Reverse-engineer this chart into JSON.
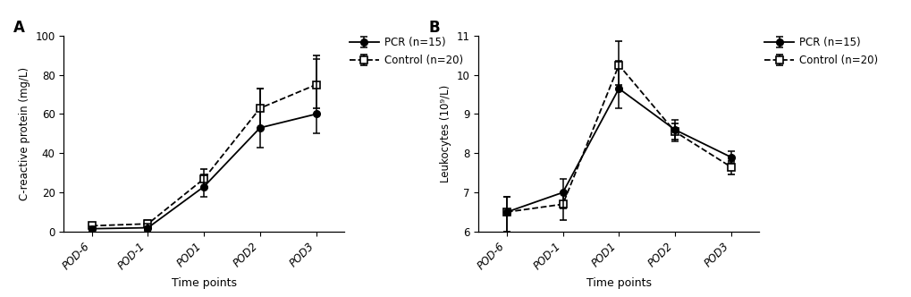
{
  "x_labels": [
    "POD-6",
    "POD-1",
    "POD1",
    "POD2",
    "POD3"
  ],
  "panel_A": {
    "title": "A",
    "ylabel": "C-reactive protein (mg/L)",
    "xlabel": "Time points",
    "ylim": [
      0,
      100
    ],
    "yticks": [
      0,
      20,
      40,
      60,
      80,
      100
    ],
    "pcr": {
      "y": [
        1.5,
        2.0,
        23.0,
        53.0,
        60.0
      ],
      "yerr_low": [
        1.0,
        1.5,
        5.0,
        10.0,
        10.0
      ],
      "yerr_high": [
        1.0,
        2.0,
        6.0,
        20.0,
        28.0
      ],
      "label": "PCR (n=15)",
      "marker": "o",
      "linestyle": "-",
      "color": "#000000"
    },
    "control": {
      "y": [
        3.0,
        4.0,
        27.0,
        63.0,
        75.0
      ],
      "yerr_low": [
        2.0,
        3.0,
        5.0,
        10.0,
        12.0
      ],
      "yerr_high": [
        1.0,
        2.0,
        5.0,
        10.0,
        15.0
      ],
      "label": "Control (n=20)",
      "marker": "s",
      "linestyle": "--",
      "color": "#000000"
    }
  },
  "panel_B": {
    "title": "B",
    "ylabel": "Leukocytes (10⁹/L)",
    "xlabel": "Time points",
    "ylim": [
      6.0,
      11.0
    ],
    "yticks": [
      6.0,
      7.0,
      8.0,
      9.0,
      10.0,
      11.0
    ],
    "pcr": {
      "y": [
        6.5,
        7.0,
        9.65,
        8.6,
        7.9
      ],
      "yerr_low": [
        0.5,
        0.4,
        0.5,
        0.3,
        0.15
      ],
      "yerr_high": [
        0.4,
        0.35,
        0.7,
        0.25,
        0.15
      ],
      "label": "PCR (n=15)",
      "marker": "o",
      "linestyle": "-",
      "color": "#000000"
    },
    "control": {
      "y": [
        6.5,
        6.7,
        10.25,
        8.55,
        7.65
      ],
      "yerr_low": [
        0.5,
        0.4,
        0.5,
        0.2,
        0.2
      ],
      "yerr_high": [
        0.4,
        0.3,
        0.6,
        0.2,
        0.15
      ],
      "label": "Control (n=20)",
      "marker": "s",
      "linestyle": "--",
      "color": "#000000"
    }
  },
  "background_color": "#ffffff",
  "font_size": 8.5,
  "title_font_size": 12
}
